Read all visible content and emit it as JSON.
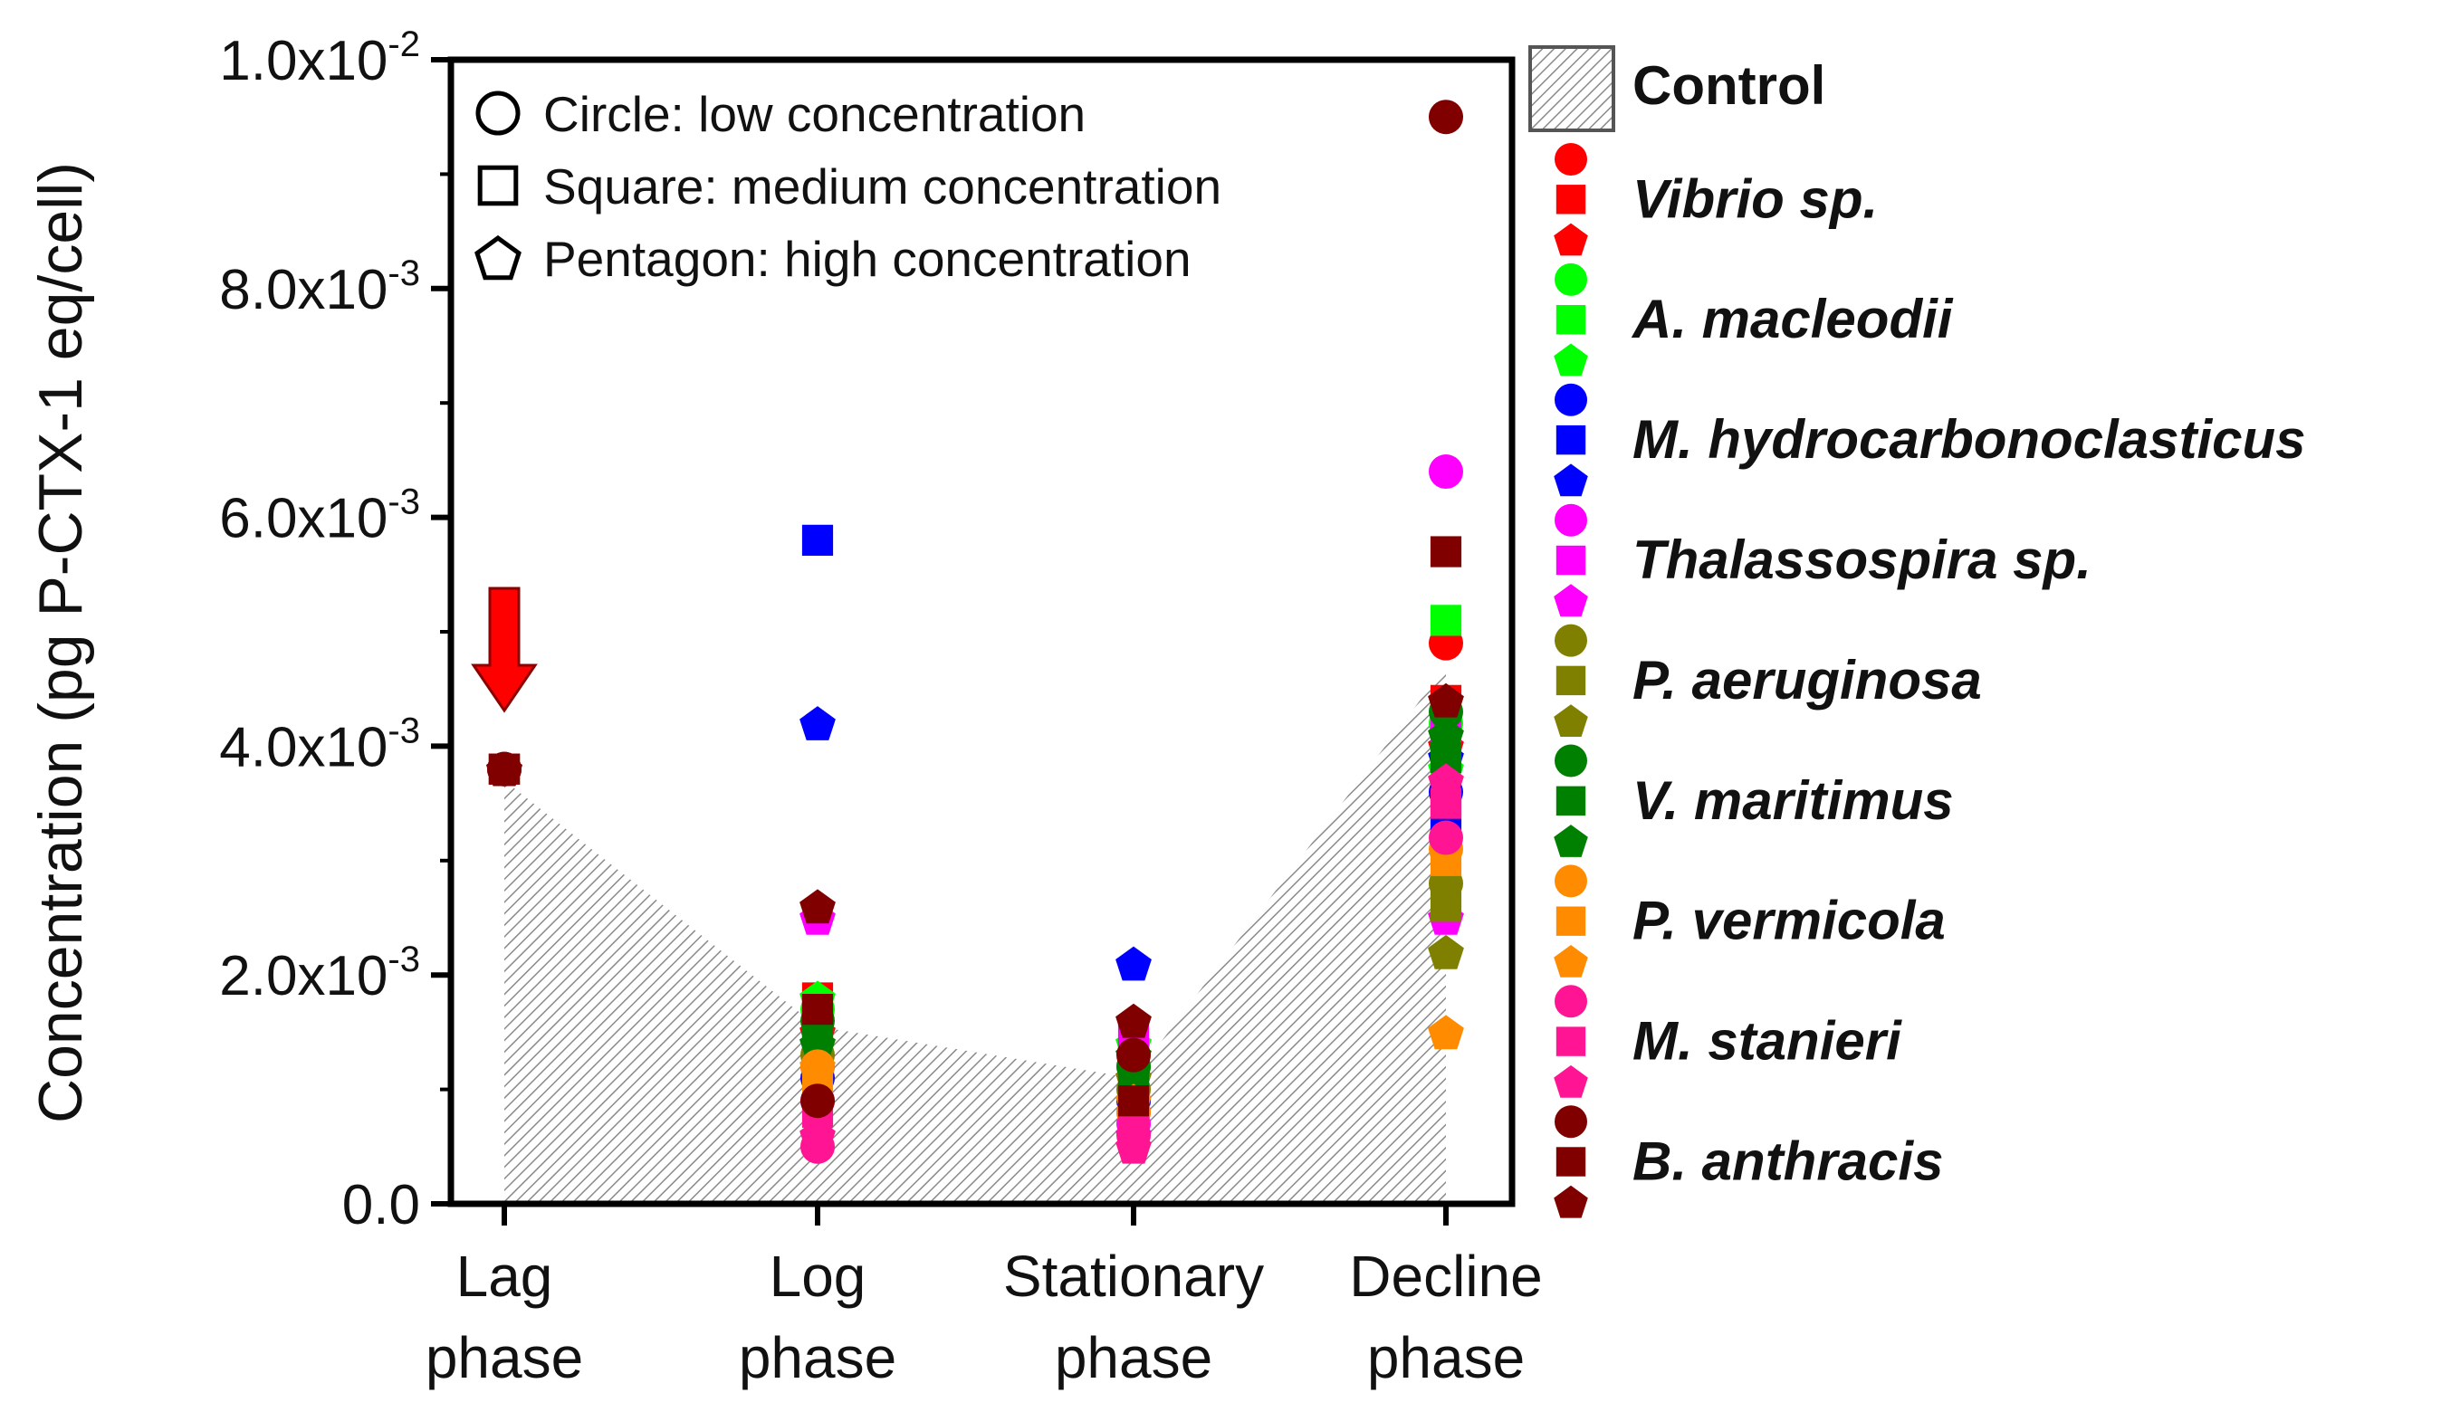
{
  "chart_data": {
    "type": "scatter",
    "title": "",
    "xlabel": "",
    "ylabel": "Concentration (pg P-CTX-1 eq/cell)",
    "categories": [
      "Lag\nphase",
      "Log\nphase",
      "Stationary\nphase",
      "Decline\nphase"
    ],
    "ylim": [
      0,
      0.01
    ],
    "y_ticks": [
      {
        "value": 0,
        "base": "0.0",
        "exp": ""
      },
      {
        "value": 0.002,
        "base": "2.0x10",
        "exp": "-3"
      },
      {
        "value": 0.004,
        "base": "4.0x10",
        "exp": "-3"
      },
      {
        "value": 0.006,
        "base": "6.0x10",
        "exp": "-3"
      },
      {
        "value": 0.008,
        "base": "8.0x10",
        "exp": "-3"
      },
      {
        "value": 0.01,
        "base": "1.0x10",
        "exp": "-2"
      }
    ],
    "shape_notes": [
      {
        "shape": "circle",
        "text": "Circle: low concentration"
      },
      {
        "shape": "square",
        "text": "Square: medium concentration"
      },
      {
        "shape": "pentagon",
        "text": "Pentagon: high concentration"
      }
    ],
    "control": {
      "name": "Control",
      "values": [
        0.0037,
        0.00155,
        0.0011,
        0.0047
      ]
    },
    "arrow": {
      "category_index": 0,
      "color": "#ff0000"
    },
    "series": [
      {
        "name": "Vibrio sp.",
        "color": "#ff0000",
        "values": {
          "circle": [
            0.0038,
            0.0012,
            0.0008,
            0.0049
          ],
          "square": [
            0.0038,
            0.0018,
            0.0009,
            0.0044
          ],
          "pentagon": [
            0.0038,
            0.0015,
            0.0011,
            0.004
          ]
        }
      },
      {
        "name": "A. macleodii",
        "color": "#00ff00",
        "values": {
          "circle": [
            0.0038,
            0.0017,
            0.0012,
            0.0042
          ],
          "square": [
            0.0038,
            0.0016,
            0.0013,
            0.0051
          ],
          "pentagon": [
            0.0038,
            0.0018,
            0.0014,
            0.0038
          ]
        }
      },
      {
        "name": "M. hydrocarbonoclasticus",
        "color": "#0000ff",
        "values": {
          "circle": [
            0.0038,
            0.0011,
            0.0009,
            0.0036
          ],
          "square": [
            0.0038,
            0.0058,
            0.0008,
            0.0034
          ],
          "pentagon": [
            0.0038,
            0.0042,
            0.0021,
            0.0039
          ]
        }
      },
      {
        "name": "Thalassospira sp.",
        "color": "#ff00ff",
        "values": {
          "circle": [
            0.0038,
            0.0009,
            0.0007,
            0.0064
          ],
          "square": [
            0.0038,
            0.0014,
            0.0015,
            0.0041
          ],
          "pentagon": [
            0.0038,
            0.0025,
            0.0006,
            0.0025
          ]
        }
      },
      {
        "name": "P. aeruginosa",
        "color": "#808000",
        "values": {
          "circle": [
            0.0038,
            0.0013,
            0.001,
            0.0028
          ],
          "square": [
            0.0038,
            0.0012,
            0.0009,
            0.0026
          ],
          "pentagon": [
            0.0038,
            0.0014,
            0.0011,
            0.0022
          ]
        }
      },
      {
        "name": "V. maritimus",
        "color": "#008000",
        "values": {
          "circle": [
            0.0038,
            0.0016,
            0.0012,
            0.0043
          ],
          "square": [
            0.0038,
            0.0015,
            0.0011,
            0.0039
          ],
          "pentagon": [
            0.0038,
            0.0014,
            0.0013,
            0.0041
          ]
        }
      },
      {
        "name": "P. vermicola",
        "color": "#ff8c00",
        "values": {
          "circle": [
            0.0038,
            0.0012,
            0.0008,
            0.0031
          ],
          "square": [
            0.0038,
            0.0011,
            0.0007,
            0.003
          ],
          "pentagon": [
            0.0038,
            0.0012,
            0.0009,
            0.0015
          ]
        }
      },
      {
        "name": "M. stanieri",
        "color": "#ff1493",
        "values": {
          "circle": [
            0.0038,
            0.0005,
            0.0006,
            0.0032
          ],
          "square": [
            0.0038,
            0.0008,
            0.0007,
            0.0035
          ],
          "pentagon": [
            0.0038,
            0.0006,
            0.0005,
            0.0037
          ]
        }
      },
      {
        "name": "B. anthracis",
        "color": "#800000",
        "values": {
          "circle": [
            0.0038,
            0.0009,
            0.0013,
            0.0095
          ],
          "square": [
            0.0038,
            0.0017,
            0.0009,
            0.0057
          ],
          "pentagon": [
            0.0038,
            0.0026,
            0.0016,
            0.0044
          ]
        }
      }
    ]
  }
}
